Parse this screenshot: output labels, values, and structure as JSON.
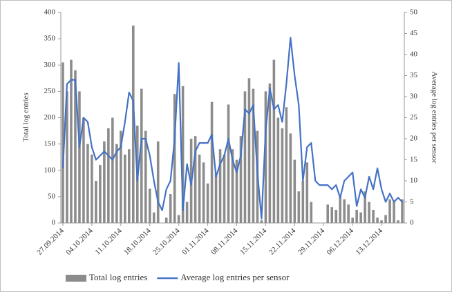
{
  "chart_data": {
    "type": "combo",
    "categories": [
      "27.09.2014",
      null,
      null,
      null,
      null,
      null,
      null,
      "04.10.2014",
      null,
      null,
      null,
      null,
      null,
      null,
      "11.10.2014",
      null,
      null,
      null,
      null,
      null,
      null,
      "18.10.2014",
      null,
      null,
      null,
      null,
      null,
      null,
      "25.10.2014",
      null,
      null,
      null,
      null,
      null,
      null,
      "01.11.2014",
      null,
      null,
      null,
      null,
      null,
      null,
      "08.11.2014",
      null,
      null,
      null,
      null,
      null,
      null,
      "15.11.2014",
      null,
      null,
      null,
      null,
      null,
      null,
      "22.11.2014",
      null,
      null,
      null,
      null,
      null,
      null,
      "29.11.2014",
      null,
      null,
      null,
      null,
      null,
      null,
      "06.12.2014",
      null,
      null,
      null,
      null,
      null,
      null,
      "13.12.2014",
      null,
      null,
      null,
      null,
      null
    ],
    "series": [
      {
        "name": "Total log entries",
        "type": "bar",
        "color": "#8c8c8c",
        "values": [
          305,
          250,
          310,
          290,
          250,
          200,
          150,
          130,
          80,
          110,
          155,
          180,
          200,
          150,
          175,
          130,
          140,
          375,
          185,
          255,
          175,
          65,
          20,
          155,
          0,
          10,
          55,
          245,
          15,
          260,
          40,
          160,
          165,
          130,
          115,
          75,
          230,
          95,
          140,
          130,
          225,
          140,
          120,
          165,
          250,
          275,
          255,
          175,
          5,
          250,
          265,
          310,
          200,
          180,
          220,
          170,
          120,
          60,
          80,
          115,
          40,
          0,
          0,
          0,
          35,
          30,
          25,
          50,
          45,
          35,
          10,
          25,
          20,
          60,
          40,
          25,
          10,
          5,
          15,
          45,
          40,
          5,
          45
        ]
      },
      {
        "name": "Average log entries per sensor",
        "type": "line",
        "axis": "y2",
        "color": "#4472c4",
        "values": [
          13,
          33,
          34,
          34,
          18,
          25,
          24,
          18,
          15,
          16,
          17,
          16,
          15,
          17,
          18,
          24,
          31,
          29,
          10,
          20,
          20,
          16,
          10,
          5,
          3,
          8,
          10,
          20,
          38,
          3,
          14,
          9,
          17,
          19,
          19,
          19,
          21,
          11,
          14,
          16,
          20,
          15,
          12,
          16,
          27,
          26,
          28,
          12,
          1,
          22,
          32,
          27,
          28,
          24,
          33,
          44,
          35,
          28,
          10,
          18,
          19,
          10,
          9,
          9,
          9,
          8,
          9,
          6,
          10,
          11,
          12,
          4,
          8,
          6,
          11,
          8,
          13,
          8,
          5,
          7,
          5,
          6,
          5
        ]
      }
    ],
    "ylabel": "Total log entries",
    "y2label": "Average log entries per sensor",
    "ylim": [
      0,
      400
    ],
    "yticks": [
      0,
      50,
      100,
      150,
      200,
      250,
      300,
      350,
      400
    ],
    "y2lim": [
      0,
      50
    ],
    "y2ticks": [
      0,
      5,
      10,
      15,
      20,
      25,
      30,
      35,
      40,
      45,
      50
    ],
    "legend": "bottom"
  }
}
